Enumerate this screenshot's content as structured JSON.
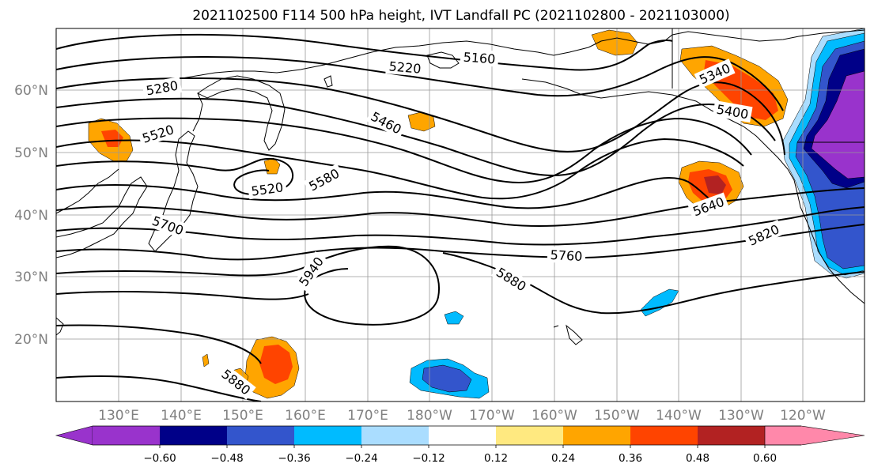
{
  "title": "2021102500 F114 500 hPa height, IVT Landfall PC (2021102800 - 2021103000)",
  "lon_ticks": [
    "130°E",
    "140°E",
    "150°E",
    "160°E",
    "170°E",
    "180°W",
    "170°W",
    "160°W",
    "150°W",
    "140°W",
    "130°W",
    "120°W"
  ],
  "lat_ticks": [
    "60°N",
    "50°N",
    "40°N",
    "30°N",
    "20°N"
  ],
  "contour_labels": [
    "5280",
    "5220",
    "5160",
    "5520",
    "5460",
    "5340",
    "5400",
    "5520",
    "5580",
    "5700",
    "5640",
    "5820",
    "5760",
    "5940",
    "5880",
    "5880"
  ],
  "colorbar": {
    "labels": [
      "−0.60",
      "−0.48",
      "−0.36",
      "−0.24",
      "−0.12",
      "0.12",
      "0.24",
      "0.36",
      "0.48",
      "0.60"
    ],
    "colors": [
      "#9933cc",
      "#000088",
      "#3355cc",
      "#00bbff",
      "#aaddff",
      "#ffffff",
      "#ffe980",
      "#ffa500",
      "#ff4400",
      "#b22222",
      "#ff88aa"
    ]
  }
}
